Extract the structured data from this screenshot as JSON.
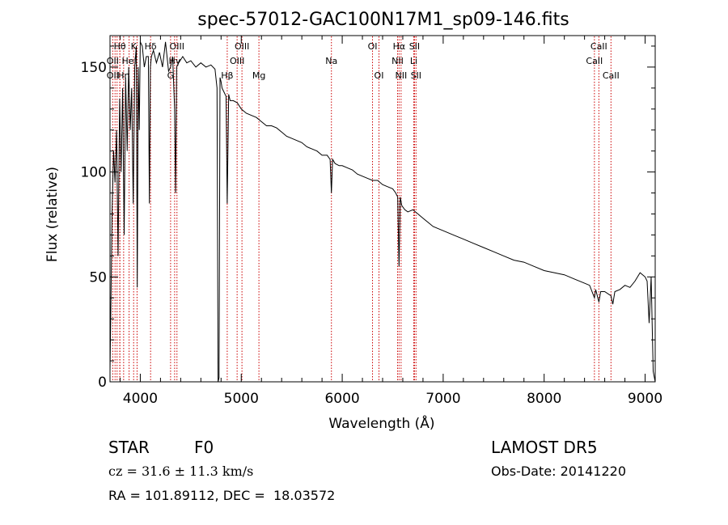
{
  "chart_data": {
    "type": "line",
    "title": "spec-57012-GAC100N17M1_sp09-146.fits",
    "xlabel": "Wavelength (Å)",
    "ylabel": "Flux (relative)",
    "xlim": [
      3700,
      9100
    ],
    "ylim": [
      0,
      165
    ],
    "x_ticks": [
      4000,
      5000,
      6000,
      7000,
      8000,
      9000
    ],
    "x_tick_labels": [
      "4000",
      "5000",
      "6000",
      "7000",
      "8000",
      "9000"
    ],
    "y_ticks": [
      0,
      50,
      100,
      150
    ],
    "y_tick_labels": [
      "0",
      "50",
      "100",
      "150"
    ],
    "grid": false,
    "line_color": "#000000",
    "marker_color": "#cc0000",
    "series": [
      {
        "x": [
          3700,
          3710,
          3720,
          3735,
          3750,
          3765,
          3780,
          3795,
          3810,
          3825,
          3840,
          3855,
          3870,
          3885,
          3900,
          3915,
          3930,
          3945,
          3960,
          3970,
          3980,
          3990,
          4000,
          4020,
          4040,
          4060,
          4080,
          4090,
          4100,
          4110,
          4130,
          4160,
          4190,
          4220,
          4250,
          4280,
          4300,
          4320,
          4340,
          4350,
          4360,
          4380,
          4420,
          4460,
          4500,
          4550,
          4600,
          4650,
          4700,
          4740,
          4760,
          4770,
          4780,
          4790,
          4800,
          4810,
          4830,
          4850,
          4861,
          4875,
          4890,
          4920,
          4960,
          5000,
          5050,
          5100,
          5150,
          5200,
          5250,
          5300,
          5350,
          5400,
          5450,
          5500,
          5550,
          5600,
          5650,
          5700,
          5750,
          5800,
          5850,
          5880,
          5893,
          5905,
          5930,
          5970,
          6000,
          6050,
          6100,
          6150,
          6200,
          6250,
          6300,
          6350,
          6400,
          6450,
          6500,
          6530,
          6550,
          6563,
          6575,
          6590,
          6620,
          6650,
          6700,
          6750,
          6800,
          6850,
          6900,
          6950,
          7000,
          7100,
          7200,
          7300,
          7400,
          7500,
          7600,
          7700,
          7800,
          7900,
          8000,
          8100,
          8200,
          8300,
          8400,
          8450,
          8498,
          8510,
          8542,
          8560,
          8600,
          8662,
          8680,
          8700,
          8750,
          8800,
          8850,
          8900,
          8950,
          9000,
          9020,
          9040,
          9060,
          9080,
          9100
        ],
        "y": [
          5,
          40,
          80,
          110,
          95,
          120,
          60,
          135,
          100,
          140,
          70,
          145,
          110,
          150,
          120,
          140,
          85,
          150,
          160,
          45,
          150,
          120,
          162,
          160,
          150,
          155,
          155,
          85,
          150,
          155,
          158,
          152,
          157,
          150,
          162,
          148,
          150,
          155,
          130,
          90,
          150,
          152,
          155,
          152,
          153,
          150,
          152,
          150,
          151,
          149,
          140,
          0,
          2,
          145,
          143,
          140,
          138,
          136,
          85,
          137,
          134,
          134,
          133,
          130,
          128,
          127,
          126,
          124,
          122,
          122,
          121,
          119,
          117,
          116,
          115,
          114,
          112,
          111,
          110,
          108,
          108,
          106,
          90,
          106,
          104,
          103,
          103,
          102,
          101,
          99,
          98,
          97,
          96,
          96,
          94,
          93,
          92,
          90,
          88,
          55,
          88,
          84,
          82,
          81,
          82,
          80,
          78,
          76,
          74,
          73,
          72,
          70,
          68,
          66,
          64,
          62,
          60,
          58,
          57,
          55,
          53,
          52,
          51,
          49,
          47,
          46,
          40,
          44,
          38,
          43,
          43,
          41,
          37,
          43,
          44,
          46,
          45,
          48,
          52,
          50,
          48,
          28,
          50,
          5,
          0
        ]
      }
    ],
    "annotations": {
      "lines": [
        {
          "name": "Hθ",
          "x": 3797,
          "row": 1
        },
        {
          "name": "OII",
          "x": 3727,
          "row": 2
        },
        {
          "name": "OII",
          "x": 3727,
          "row": 3
        },
        {
          "name": "K",
          "x": 3934,
          "row": 1
        },
        {
          "name": "HeI",
          "x": 3889,
          "row": 2
        },
        {
          "name": "Hη",
          "x": 3835,
          "row": 3
        },
        {
          "name": "Hδ",
          "x": 4102,
          "row": 1
        },
        {
          "name": "OIII",
          "x": 4363,
          "row": 1
        },
        {
          "name": "Hγ",
          "x": 4340,
          "row": 2
        },
        {
          "name": "G",
          "x": 4300,
          "row": 3
        },
        {
          "name": "OIII",
          "x": 5007,
          "row": 1
        },
        {
          "name": "OIII",
          "x": 4959,
          "row": 2
        },
        {
          "name": "Hβ",
          "x": 4861,
          "row": 3
        },
        {
          "name": "Mg",
          "x": 5175,
          "row": 3
        },
        {
          "name": "Na",
          "x": 5893,
          "row": 2
        },
        {
          "name": "OI",
          "x": 6300,
          "row": 1
        },
        {
          "name": "OI",
          "x": 6364,
          "row": 3
        },
        {
          "name": "Hα",
          "x": 6563,
          "row": 1
        },
        {
          "name": "NII",
          "x": 6548,
          "row": 2
        },
        {
          "name": "NII",
          "x": 6583,
          "row": 3
        },
        {
          "name": "SII",
          "x": 6716,
          "row": 1
        },
        {
          "name": "Li",
          "x": 6708,
          "row": 2
        },
        {
          "name": "SII",
          "x": 6731,
          "row": 3
        },
        {
          "name": "CaII",
          "x": 8542,
          "row": 1
        },
        {
          "name": "CaII",
          "x": 8498,
          "row": 2
        },
        {
          "name": "CaII",
          "x": 8662,
          "row": 3
        }
      ],
      "extra_markers": [
        3750,
        3770,
        3798,
        3889,
        3968,
        4102,
        4340,
        4861
      ]
    }
  },
  "info": {
    "class_label": "STAR",
    "subclass_label": "F0",
    "survey": "LAMOST DR5",
    "redshift_text": "cz = 31.6 ± 11.3 km/s",
    "obs_date": "Obs-Date: 20141220",
    "coords": "RA = 101.89112, DEC =  18.03572"
  }
}
